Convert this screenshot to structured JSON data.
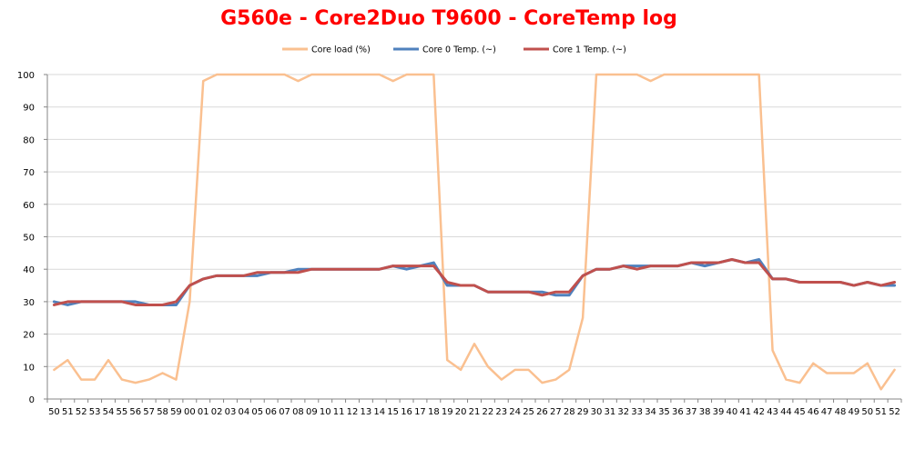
{
  "chart_data": {
    "type": "line",
    "title": "G560e - Core2Duo T9600 - CoreTemp log",
    "xlabel": "",
    "ylabel": "",
    "ylim": [
      0,
      100
    ],
    "yticks": [
      0,
      10,
      20,
      30,
      40,
      50,
      60,
      70,
      80,
      90,
      100
    ],
    "grid": "horizontal",
    "legend_position": "top",
    "categories": [
      "50",
      "51",
      "52",
      "53",
      "54",
      "55",
      "56",
      "57",
      "58",
      "59",
      "00",
      "01",
      "02",
      "03",
      "04",
      "05",
      "06",
      "07",
      "08",
      "09",
      "10",
      "11",
      "12",
      "13",
      "14",
      "15",
      "16",
      "17",
      "18",
      "19",
      "20",
      "21",
      "22",
      "23",
      "24",
      "25",
      "26",
      "27",
      "28",
      "29",
      "30",
      "31",
      "32",
      "33",
      "34",
      "35",
      "36",
      "37",
      "38",
      "39",
      "40",
      "41",
      "42",
      "43",
      "44",
      "45",
      "46",
      "47",
      "48",
      "49",
      "50",
      "51",
      "52"
    ],
    "series": [
      {
        "name": "Core load (%)",
        "color": "#fac090",
        "values": [
          9,
          12,
          6,
          6,
          12,
          6,
          5,
          6,
          8,
          6,
          30,
          98,
          100,
          100,
          100,
          100,
          100,
          100,
          98,
          100,
          100,
          100,
          100,
          100,
          100,
          98,
          100,
          100,
          100,
          12,
          9,
          17,
          10,
          6,
          9,
          9,
          5,
          6,
          9,
          25,
          100,
          100,
          100,
          100,
          98,
          100,
          100,
          100,
          100,
          100,
          100,
          100,
          100,
          15,
          6,
          5,
          11,
          8,
          8,
          8,
          11,
          3,
          9
        ]
      },
      {
        "name": "Core 0 Temp. (~)",
        "color": "#4f81bd",
        "values": [
          30,
          29,
          30,
          30,
          30,
          30,
          30,
          29,
          29,
          29,
          35,
          37,
          38,
          38,
          38,
          38,
          39,
          39,
          40,
          40,
          40,
          40,
          40,
          40,
          40,
          41,
          40,
          41,
          42,
          35,
          35,
          35,
          33,
          33,
          33,
          33,
          33,
          32,
          32,
          38,
          40,
          40,
          41,
          41,
          41,
          41,
          41,
          42,
          41,
          42,
          43,
          42,
          43,
          37,
          37,
          36,
          36,
          36,
          36,
          35,
          36,
          35,
          35
        ]
      },
      {
        "name": "Core 1 Temp. (~)",
        "color": "#c0504d",
        "values": [
          29,
          30,
          30,
          30,
          30,
          30,
          29,
          29,
          29,
          30,
          35,
          37,
          38,
          38,
          38,
          39,
          39,
          39,
          39,
          40,
          40,
          40,
          40,
          40,
          40,
          41,
          41,
          41,
          41,
          36,
          35,
          35,
          33,
          33,
          33,
          33,
          32,
          33,
          33,
          38,
          40,
          40,
          41,
          40,
          41,
          41,
          41,
          42,
          42,
          42,
          43,
          42,
          42,
          37,
          37,
          36,
          36,
          36,
          36,
          35,
          36,
          35,
          36
        ]
      }
    ]
  }
}
